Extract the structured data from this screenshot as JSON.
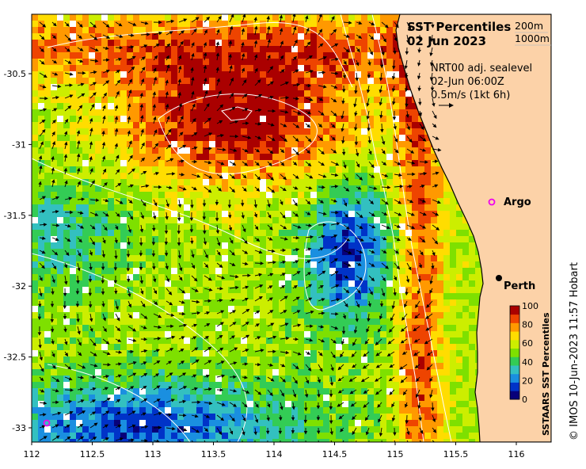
{
  "map": {
    "title": "SST Percentiles",
    "date": "02 Jun 2023",
    "isobath_labels": [
      "200m",
      "1000m"
    ],
    "current_product": "NRT00 adj. sealevel",
    "current_time": "02-Jun 06:00Z",
    "reference_vector": "0.5m/s (1kt 6h)",
    "x_ticks": [
      "112",
      "112.5",
      "113",
      "113.5",
      "114",
      "114.5",
      "115",
      "115.5",
      "116"
    ],
    "y_ticks": [
      "-30.5",
      "-31",
      "-31.5",
      "-32",
      "-32.5",
      "-33"
    ],
    "places": [
      {
        "name": "Argo",
        "marker": "magenta-ring"
      },
      {
        "name": "Perth",
        "marker": "black-dot"
      }
    ],
    "colorbar": {
      "title": "SSTAARS SST Percentiles",
      "ticks": [
        "100",
        "80",
        "60",
        "40",
        "20",
        "0"
      ],
      "colors": [
        "#08007a",
        "#0033c8",
        "#1a8fe0",
        "#33c0c0",
        "#33cc55",
        "#7ee000",
        "#ccee00",
        "#ffdd00",
        "#ff9900",
        "#ee4400",
        "#aa0000"
      ]
    },
    "credit": "© IMOS 10-Jun-2023 11:57 Hobart",
    "colors": {
      "land": "#fcd2a8",
      "argo_marker": "#ee00ee",
      "current_arrow": "#000000",
      "isobath": "#ffffff"
    }
  }
}
